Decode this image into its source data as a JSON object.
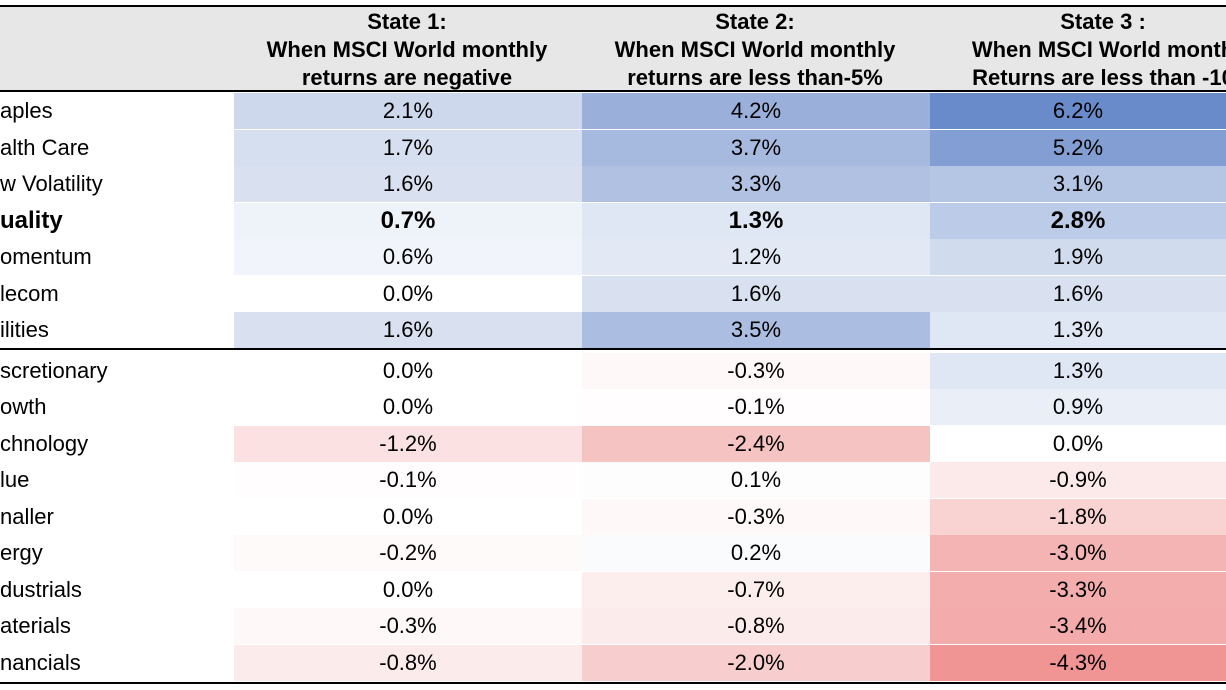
{
  "chart_data": {
    "type": "table",
    "columns": [
      {
        "title": "State 1:",
        "line2": "When MSCI World monthly",
        "line3": "returns are negative"
      },
      {
        "title": "State 2:",
        "line2": "When MSCI World monthly",
        "line3": "returns are less than-5%"
      },
      {
        "title": "State 3 :",
        "line2": "When MSCI World month",
        "line3": "Returns are less than -10"
      }
    ],
    "rows": [
      {
        "label": "aples",
        "values": [
          "2.1%",
          "4.2%",
          "6.2%"
        ],
        "bold": false,
        "group": 1
      },
      {
        "label": "alth Care",
        "values": [
          "1.7%",
          "3.7%",
          "5.2%"
        ],
        "bold": false,
        "group": 1
      },
      {
        "label": "w Volatility",
        "values": [
          "1.6%",
          "3.3%",
          "3.1%"
        ],
        "bold": false,
        "group": 1
      },
      {
        "label": "uality",
        "values": [
          "0.7%",
          "1.3%",
          "2.8%"
        ],
        "bold": true,
        "group": 1
      },
      {
        "label": "omentum",
        "values": [
          "0.6%",
          "1.2%",
          "1.9%"
        ],
        "bold": false,
        "group": 1
      },
      {
        "label": "lecom",
        "values": [
          "0.0%",
          "1.6%",
          "1.6%"
        ],
        "bold": false,
        "group": 1
      },
      {
        "label": "ilities",
        "values": [
          "1.6%",
          "3.5%",
          "1.3%"
        ],
        "bold": false,
        "group": 1
      },
      {
        "label": "scretionary",
        "values": [
          "0.0%",
          "-0.3%",
          "1.3%"
        ],
        "bold": false,
        "group": 2
      },
      {
        "label": "owth",
        "values": [
          "0.0%",
          "-0.1%",
          "0.9%"
        ],
        "bold": false,
        "group": 2
      },
      {
        "label": "chnology",
        "values": [
          "-1.2%",
          "-2.4%",
          "0.0%"
        ],
        "bold": false,
        "group": 2
      },
      {
        "label": "lue",
        "values": [
          "-0.1%",
          "0.1%",
          "-0.9%"
        ],
        "bold": false,
        "group": 2
      },
      {
        "label": "naller",
        "values": [
          "0.0%",
          "-0.3%",
          "-1.8%"
        ],
        "bold": false,
        "group": 2
      },
      {
        "label": "ergy",
        "values": [
          "-0.2%",
          "0.2%",
          "-3.0%"
        ],
        "bold": false,
        "group": 2
      },
      {
        "label": "dustrials",
        "values": [
          "0.0%",
          "-0.7%",
          "-3.3%"
        ],
        "bold": false,
        "group": 2
      },
      {
        "label": "aterials",
        "values": [
          "-0.3%",
          "-0.8%",
          "-3.4%"
        ],
        "bold": false,
        "group": 2
      },
      {
        "label": "nancials",
        "values": [
          "-0.8%",
          "-2.0%",
          "-4.3%"
        ],
        "bold": false,
        "group": 2
      }
    ],
    "color_scale": {
      "positive": "#6a8bc9",
      "negative": "#e96565",
      "neutral": "#ffffff",
      "max_abs": 6.2
    },
    "colors": {
      "header_bg": "#e7e7e7",
      "rule": "#000000"
    }
  }
}
